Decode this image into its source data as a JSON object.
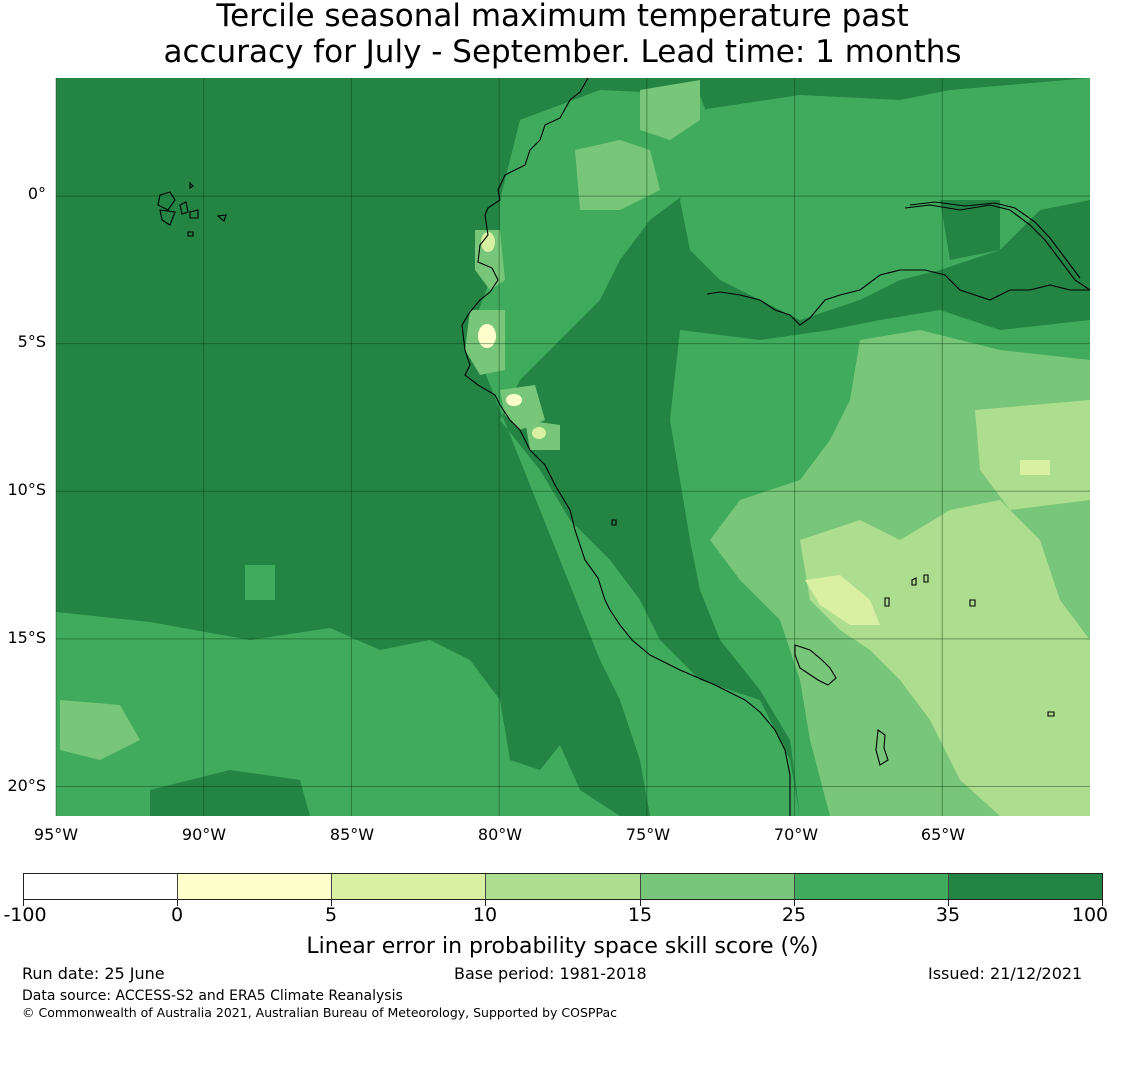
{
  "title": {
    "line1": "Tercile seasonal maximum temperature past",
    "line2": "accuracy for July - September. Lead time: 1 months"
  },
  "map": {
    "latitude_labels": [
      "0°",
      "5°S",
      "10°S",
      "15°S",
      "20°S"
    ],
    "longitude_labels": [
      "95°W",
      "90°W",
      "85°W",
      "80°W",
      "75°W",
      "70°W",
      "65°W"
    ],
    "lon_range": [
      -95,
      -60
    ],
    "lat_range": [
      -21,
      4
    ],
    "grid": true,
    "ocean_skill_class": "35 to 100",
    "coastline_color": "#000000"
  },
  "colorbar": {
    "title": "Linear error in probability space skill score (%)",
    "tick_labels": [
      "-100",
      "0",
      "5",
      "10",
      "15",
      "25",
      "35",
      "100"
    ],
    "colors": [
      "#ffffff",
      "#ffffcc",
      "#d9f0a3",
      "#addd8e",
      "#78c679",
      "#41ab5d",
      "#238443"
    ]
  },
  "footer": {
    "run_date": "Run date: 25 June",
    "base_period": "Base period: 1981-2018",
    "issued": "Issued: 21/12/2021",
    "data_source": "Data source: ACCESS-S2 and ERA5 Climate Reanalysis",
    "copyright": "© Commonwealth of Australia 2021, Australian Bureau of Meteorology, Supported by COSPPac"
  }
}
